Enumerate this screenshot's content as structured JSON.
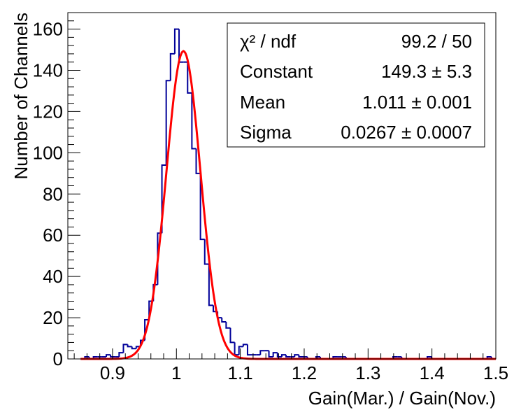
{
  "chart_data": {
    "type": "histogram",
    "title": "",
    "xlabel": "Gain(Mar.) / Gain(Nov.)",
    "ylabel": "Number of Channels",
    "xlim": [
      0.83,
      1.5
    ],
    "ylim": [
      0,
      168
    ],
    "xticks": [
      0.9,
      1,
      1.1,
      1.2,
      1.3,
      1.4,
      1.5
    ],
    "yticks": [
      0,
      20,
      40,
      60,
      80,
      100,
      120,
      140,
      160
    ],
    "xtick_labels": [
      "0.9",
      "1",
      "1.1",
      "1.2",
      "1.3",
      "1.4",
      "1.5"
    ],
    "ytick_labels": [
      "0",
      "20",
      "40",
      "60",
      "80",
      "100",
      "120",
      "140",
      "160"
    ],
    "histogram": {
      "color": "#000099",
      "bin_width": 0.0067,
      "bins": [
        [
          0.85,
          0.8567,
          0
        ],
        [
          0.8567,
          0.8634,
          1
        ],
        [
          0.8634,
          0.8701,
          0
        ],
        [
          0.8701,
          0.8768,
          1
        ],
        [
          0.8768,
          0.8835,
          1
        ],
        [
          0.8835,
          0.8902,
          1
        ],
        [
          0.8902,
          0.8969,
          2
        ],
        [
          0.8969,
          0.9036,
          1
        ],
        [
          0.9036,
          0.9103,
          1
        ],
        [
          0.9103,
          0.917,
          3
        ],
        [
          0.917,
          0.9237,
          7
        ],
        [
          0.9237,
          0.9304,
          6
        ],
        [
          0.9304,
          0.9371,
          5
        ],
        [
          0.9371,
          0.9438,
          6
        ],
        [
          0.9438,
          0.9505,
          9
        ],
        [
          0.9505,
          0.9572,
          19
        ],
        [
          0.9572,
          0.9639,
          28
        ],
        [
          0.9639,
          0.9706,
          36
        ],
        [
          0.9706,
          0.9773,
          61
        ],
        [
          0.9773,
          0.984,
          94
        ],
        [
          0.984,
          0.9907,
          135
        ],
        [
          0.9907,
          0.9974,
          148
        ],
        [
          0.9974,
          1.0041,
          160
        ],
        [
          1.0041,
          1.0108,
          144
        ],
        [
          1.0108,
          1.0175,
          144
        ],
        [
          1.0175,
          1.0242,
          129
        ],
        [
          1.0242,
          1.0309,
          102
        ],
        [
          1.0309,
          1.0376,
          90
        ],
        [
          1.0376,
          1.0443,
          58
        ],
        [
          1.0443,
          1.051,
          46
        ],
        [
          1.051,
          1.0577,
          26
        ],
        [
          1.0577,
          1.0644,
          23
        ],
        [
          1.0644,
          1.0711,
          20
        ],
        [
          1.0711,
          1.0778,
          18
        ],
        [
          1.0778,
          1.0845,
          15
        ],
        [
          1.0845,
          1.0912,
          8
        ],
        [
          1.0912,
          1.0979,
          2
        ],
        [
          1.0979,
          1.1046,
          6
        ],
        [
          1.1046,
          1.1113,
          7
        ],
        [
          1.1113,
          1.118,
          2
        ],
        [
          1.118,
          1.1247,
          2
        ],
        [
          1.1247,
          1.1314,
          2
        ],
        [
          1.1314,
          1.1381,
          4
        ],
        [
          1.1381,
          1.1448,
          4
        ],
        [
          1.1448,
          1.1515,
          1
        ],
        [
          1.1515,
          1.1582,
          3
        ],
        [
          1.1582,
          1.1649,
          1
        ],
        [
          1.1649,
          1.1716,
          2
        ],
        [
          1.1716,
          1.1783,
          1
        ],
        [
          1.1783,
          1.185,
          1
        ],
        [
          1.185,
          1.1917,
          2
        ],
        [
          1.1917,
          1.1984,
          1
        ],
        [
          1.1984,
          1.2051,
          1
        ],
        [
          1.2051,
          1.2118,
          0
        ],
        [
          1.2118,
          1.2185,
          0
        ],
        [
          1.2185,
          1.2252,
          1
        ],
        [
          1.2252,
          1.2319,
          0
        ],
        [
          1.2319,
          1.2386,
          0
        ],
        [
          1.2386,
          1.2453,
          0
        ],
        [
          1.2453,
          1.252,
          1
        ],
        [
          1.252,
          1.2587,
          1
        ],
        [
          1.2587,
          1.2654,
          1
        ],
        [
          1.2654,
          1.2721,
          0
        ],
        [
          1.2721,
          1.2788,
          0
        ],
        [
          1.2788,
          1.2855,
          0
        ],
        [
          1.2855,
          1.2922,
          0
        ],
        [
          1.2922,
          1.2989,
          0
        ],
        [
          1.2989,
          1.3056,
          0
        ],
        [
          1.3056,
          1.3123,
          0
        ],
        [
          1.3123,
          1.319,
          0
        ],
        [
          1.319,
          1.3257,
          0
        ],
        [
          1.3257,
          1.3324,
          0
        ],
        [
          1.3324,
          1.3391,
          0
        ],
        [
          1.3391,
          1.3458,
          1
        ],
        [
          1.3458,
          1.3525,
          1
        ],
        [
          1.3525,
          1.3592,
          0
        ],
        [
          1.3592,
          1.3659,
          0
        ],
        [
          1.3659,
          1.3726,
          0
        ],
        [
          1.3726,
          1.3793,
          0
        ],
        [
          1.3793,
          1.386,
          0
        ],
        [
          1.386,
          1.3927,
          0
        ],
        [
          1.3927,
          1.3994,
          1
        ],
        [
          1.3994,
          1.4061,
          0
        ],
        [
          1.4061,
          1.4128,
          0
        ],
        [
          1.4128,
          1.4195,
          0
        ],
        [
          1.4195,
          1.4262,
          0
        ],
        [
          1.4262,
          1.4329,
          0
        ],
        [
          1.4329,
          1.4396,
          0
        ],
        [
          1.4396,
          1.4463,
          0
        ],
        [
          1.4463,
          1.453,
          0
        ],
        [
          1.453,
          1.4597,
          0
        ],
        [
          1.4597,
          1.4664,
          0
        ],
        [
          1.4664,
          1.4731,
          0
        ],
        [
          1.4731,
          1.4798,
          0
        ],
        [
          1.4798,
          1.4865,
          0
        ],
        [
          1.4865,
          1.4932,
          1
        ],
        [
          1.4932,
          1.5,
          0
        ]
      ]
    },
    "fit": {
      "function": "gaus",
      "color": "#ff0000",
      "constant": 149.3,
      "mean": 1.011,
      "sigma": 0.0267,
      "x_range": [
        0.85,
        1.5
      ]
    },
    "stats_box": {
      "rows": [
        {
          "label": "χ² / ndf",
          "value": "99.2 / 50"
        },
        {
          "label": "Constant",
          "value": "149.3 ± 5.3"
        },
        {
          "label": "Mean",
          "value": "1.011 ± 0.001"
        },
        {
          "label": "Sigma",
          "value": "0.0267 ± 0.0007"
        }
      ]
    },
    "grid": false,
    "legend": "top-right"
  }
}
